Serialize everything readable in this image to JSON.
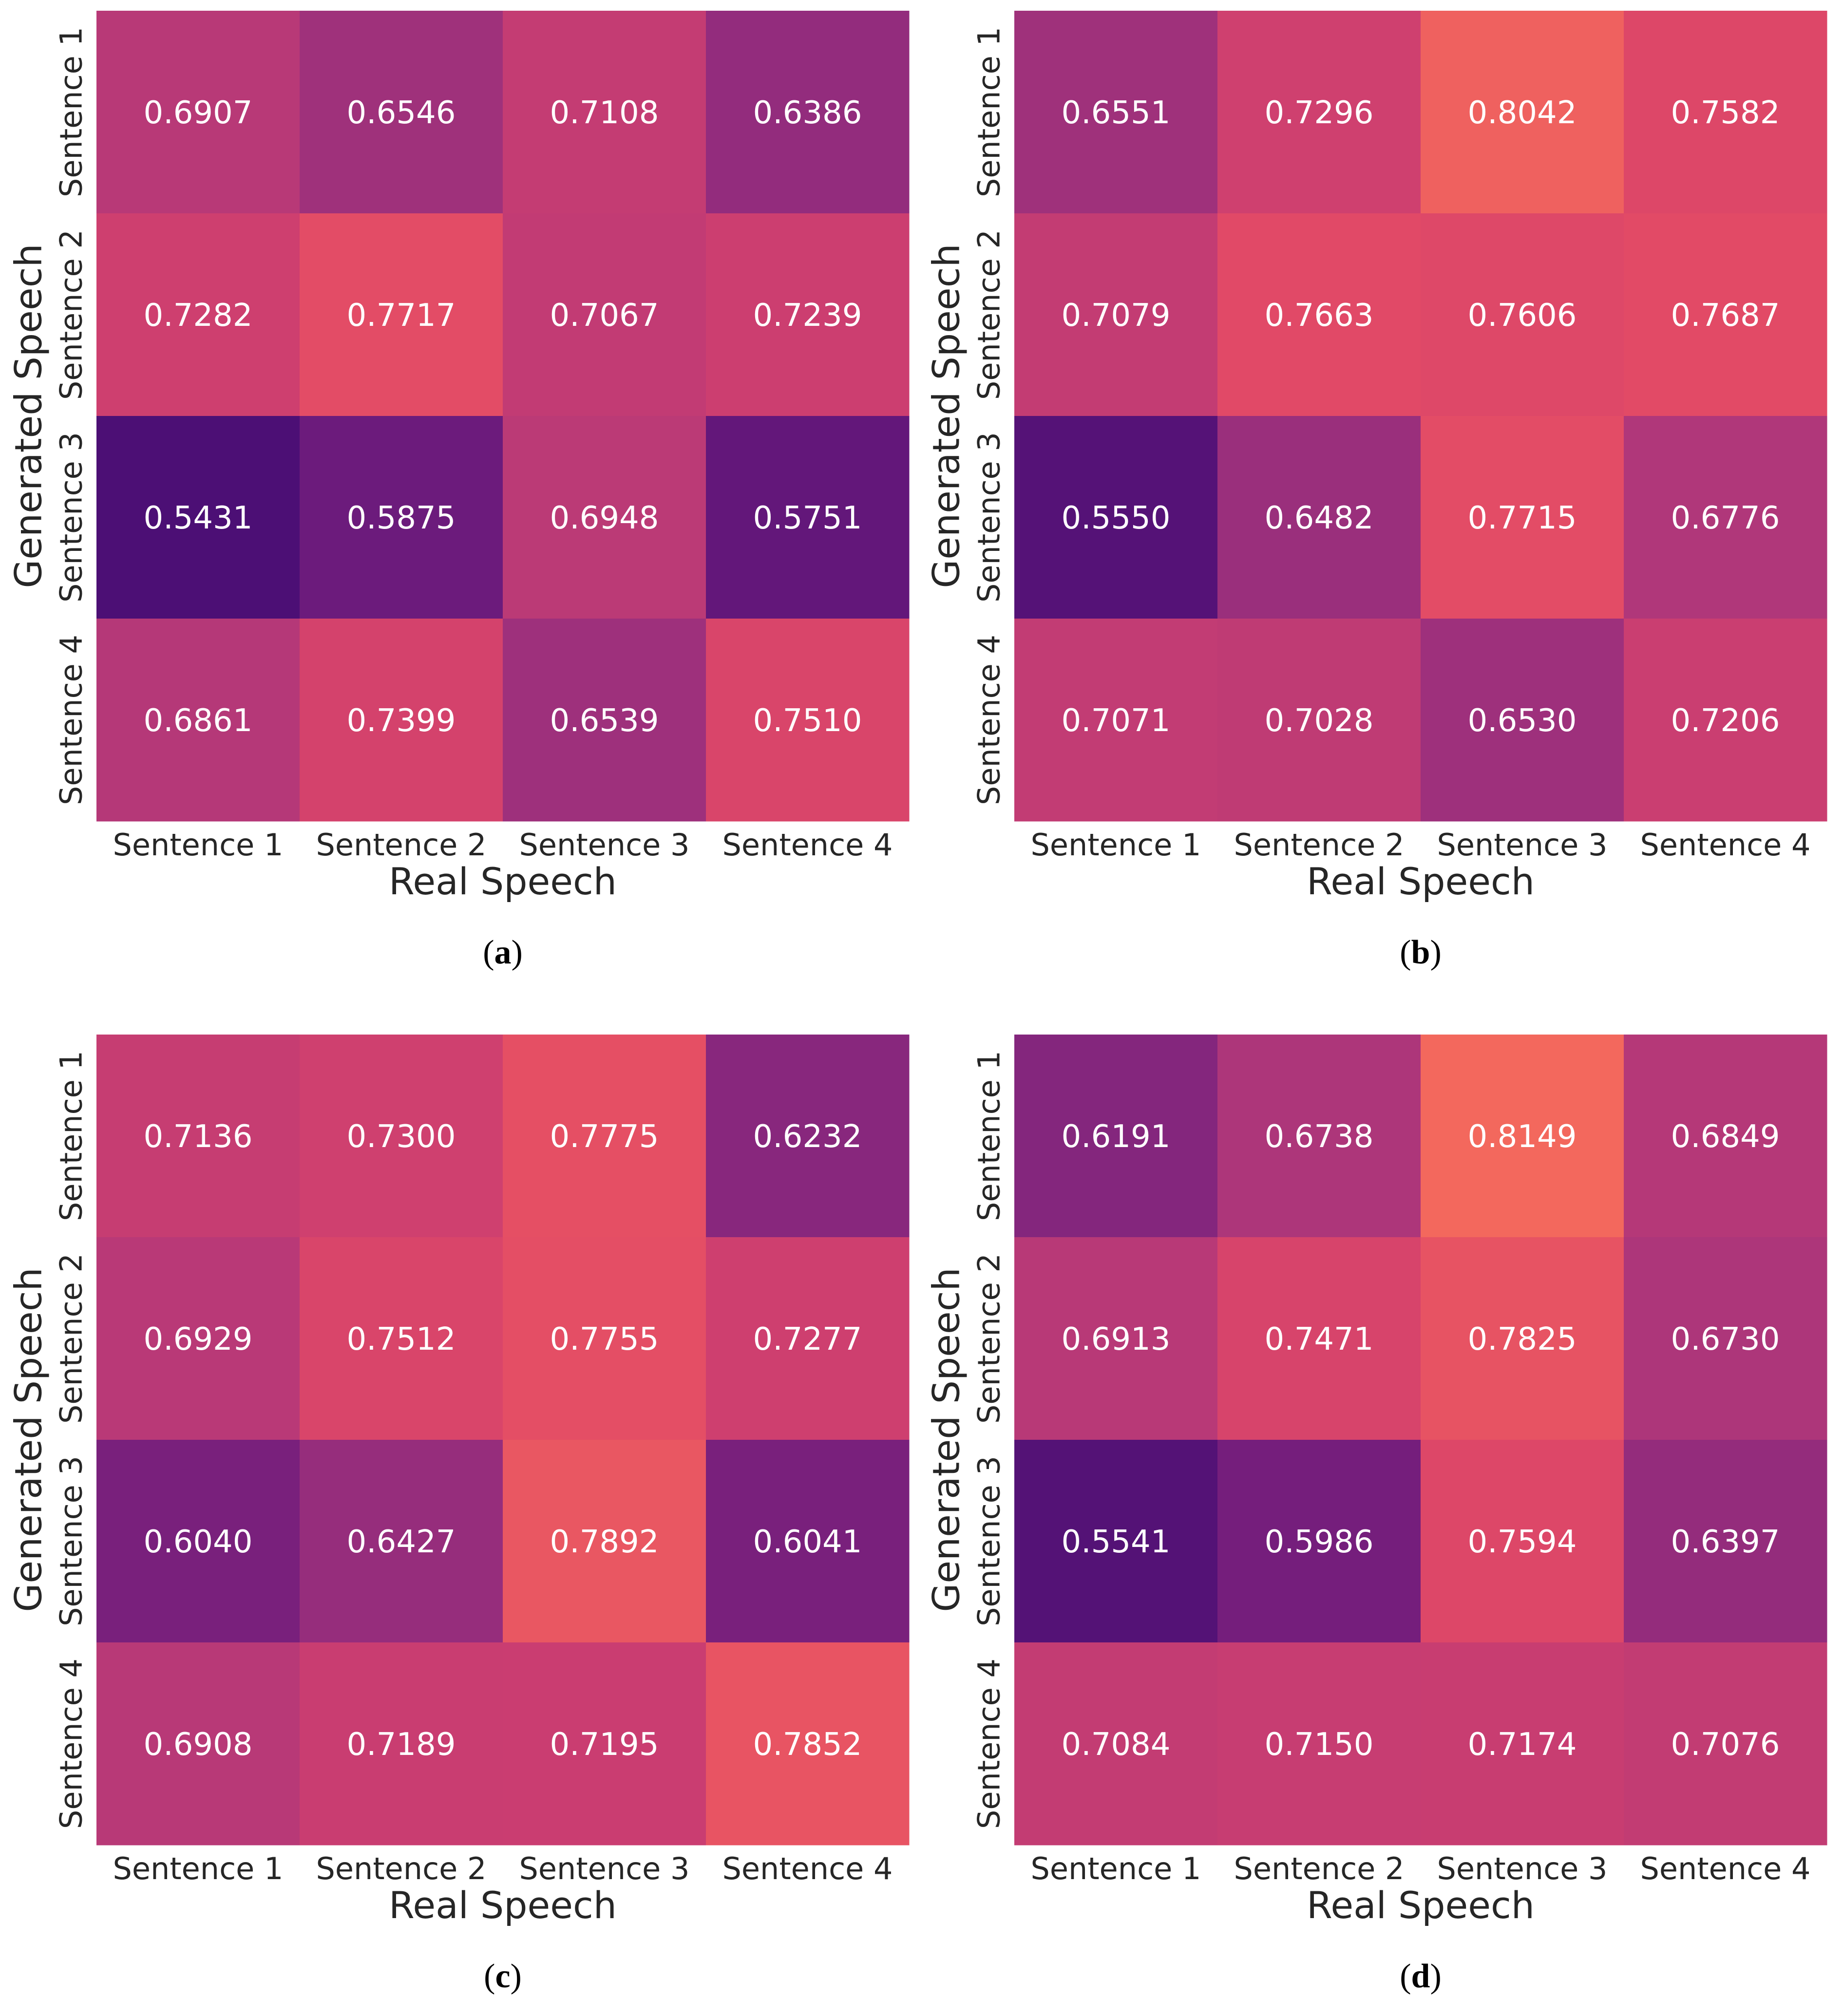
{
  "chart_data": [
    {
      "type": "heatmap",
      "panel": "a",
      "xlabel": "Real Speech",
      "ylabel": "Generated Speech",
      "x_categories": [
        "Sentence 1",
        "Sentence 2",
        "Sentence 3",
        "Sentence 4"
      ],
      "y_categories": [
        "Sentence 1",
        "Sentence 2",
        "Sentence 3",
        "Sentence 4"
      ],
      "values": [
        [
          0.6907,
          0.6546,
          0.7108,
          0.6386
        ],
        [
          0.7282,
          0.7717,
          0.7067,
          0.7239
        ],
        [
          0.5431,
          0.5875,
          0.6948,
          0.5751
        ],
        [
          0.6861,
          0.7399,
          0.6539,
          0.751
        ]
      ],
      "value_labels": [
        [
          "0.6907",
          "0.6546",
          "0.7108",
          "0.6386"
        ],
        [
          "0.7282",
          "0.7717",
          "0.7067",
          "0.7239"
        ],
        [
          "0.5431",
          "0.5875",
          "0.6948",
          "0.5751"
        ],
        [
          "0.6861",
          "0.7399",
          "0.6539",
          "0.7510"
        ]
      ]
    },
    {
      "type": "heatmap",
      "panel": "b",
      "xlabel": "Real Speech",
      "ylabel": "Generated Speech",
      "x_categories": [
        "Sentence 1",
        "Sentence 2",
        "Sentence 3",
        "Sentence 4"
      ],
      "y_categories": [
        "Sentence 1",
        "Sentence 2",
        "Sentence 3",
        "Sentence 4"
      ],
      "values": [
        [
          0.6551,
          0.7296,
          0.8042,
          0.7582
        ],
        [
          0.7079,
          0.7663,
          0.7606,
          0.7687
        ],
        [
          0.555,
          0.6482,
          0.7715,
          0.6776
        ],
        [
          0.7071,
          0.7028,
          0.653,
          0.7206
        ]
      ],
      "value_labels": [
        [
          "0.6551",
          "0.7296",
          "0.8042",
          "0.7582"
        ],
        [
          "0.7079",
          "0.7663",
          "0.7606",
          "0.7687"
        ],
        [
          "0.5550",
          "0.6482",
          "0.7715",
          "0.6776"
        ],
        [
          "0.7071",
          "0.7028",
          "0.6530",
          "0.7206"
        ]
      ]
    },
    {
      "type": "heatmap",
      "panel": "c",
      "xlabel": "Real Speech",
      "ylabel": "Generated Speech",
      "x_categories": [
        "Sentence 1",
        "Sentence 2",
        "Sentence 3",
        "Sentence 4"
      ],
      "y_categories": [
        "Sentence 1",
        "Sentence 2",
        "Sentence 3",
        "Sentence 4"
      ],
      "values": [
        [
          0.7136,
          0.73,
          0.7775,
          0.6232
        ],
        [
          0.6929,
          0.7512,
          0.7755,
          0.7277
        ],
        [
          0.604,
          0.6427,
          0.7892,
          0.6041
        ],
        [
          0.6908,
          0.7189,
          0.7195,
          0.7852
        ]
      ],
      "value_labels": [
        [
          "0.7136",
          "0.7300",
          "0.7775",
          "0.6232"
        ],
        [
          "0.6929",
          "0.7512",
          "0.7755",
          "0.7277"
        ],
        [
          "0.6040",
          "0.6427",
          "0.7892",
          "0.6041"
        ],
        [
          "0.6908",
          "0.7189",
          "0.7195",
          "0.7852"
        ]
      ]
    },
    {
      "type": "heatmap",
      "panel": "d",
      "xlabel": "Real Speech",
      "ylabel": "Generated Speech",
      "x_categories": [
        "Sentence 1",
        "Sentence 2",
        "Sentence 3",
        "Sentence 4"
      ],
      "y_categories": [
        "Sentence 1",
        "Sentence 2",
        "Sentence 3",
        "Sentence 4"
      ],
      "values": [
        [
          0.6191,
          0.6738,
          0.8149,
          0.6849
        ],
        [
          0.6913,
          0.7471,
          0.7825,
          0.673
        ],
        [
          0.5541,
          0.5986,
          0.7594,
          0.6397
        ],
        [
          0.7084,
          0.715,
          0.7174,
          0.7076
        ]
      ],
      "value_labels": [
        [
          "0.6191",
          "0.6738",
          "0.8149",
          "0.6849"
        ],
        [
          "0.6913",
          "0.7471",
          "0.7825",
          "0.6730"
        ],
        [
          "0.5541",
          "0.5986",
          "0.7594",
          "0.6397"
        ],
        [
          "0.7084",
          "0.7150",
          "0.7174",
          "0.7076"
        ]
      ]
    }
  ],
  "colormap": {
    "name": "magma-like",
    "vmin": 0.54,
    "vmax": 0.815,
    "stops": [
      "#4a0e74",
      "#6b1a7c",
      "#8e2a7d",
      "#b0377a",
      "#cc3e70",
      "#e24a66",
      "#f3685d"
    ]
  },
  "panel_captions": [
    "a",
    "b",
    "c",
    "d"
  ]
}
